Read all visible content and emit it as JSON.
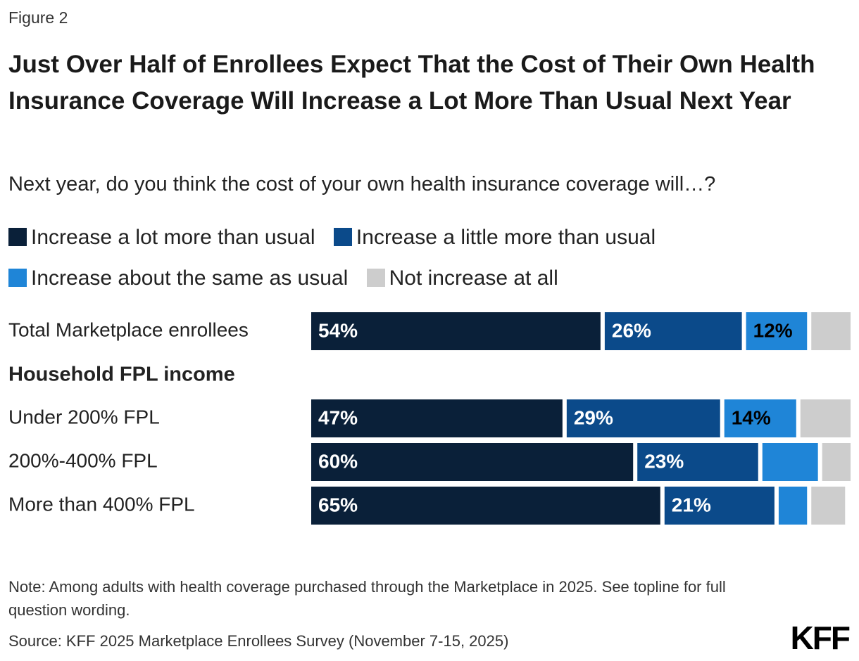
{
  "figure_label": "Figure 2",
  "chart_data": {
    "type": "stacked-bar",
    "title": "Just Over Half of Enrollees Expect That the Cost of Their Own Health Insurance Coverage Will Increase a Lot More Than Usual Next Year",
    "subtitle": "Next year, do you think the cost of your own health insurance coverage will…?",
    "categories": [
      "Total Marketplace enrollees",
      "Under 200% FPL",
      "200%-400% FPL",
      "More than 400% FPL"
    ],
    "group_heading": "Household FPL income",
    "xlim": [
      0,
      100
    ],
    "series": [
      {
        "name": "Increase a lot more than usual",
        "color": "#0a2039",
        "label_color": "#ffffff",
        "values": [
          54,
          47,
          60,
          65
        ],
        "value_labels": [
          "54%",
          "47%",
          "60%",
          "65%"
        ]
      },
      {
        "name": "Increase a little more than usual",
        "color": "#0b4a8a",
        "label_color": "#ffffff",
        "values": [
          26,
          29,
          23,
          21
        ],
        "value_labels": [
          "26%",
          "29%",
          "23%",
          "21%"
        ]
      },
      {
        "name": "Increase about the same as usual",
        "color": "#1f85d7",
        "label_color": "#000000",
        "values": [
          12,
          14,
          11,
          6
        ],
        "value_labels": [
          "12%",
          "14%",
          null,
          null
        ]
      },
      {
        "name": "Not increase at all",
        "color": "#cdcdcd",
        "label_color": "#000000",
        "values": [
          8,
          10,
          6,
          7
        ],
        "value_labels": [
          null,
          null,
          null,
          null
        ]
      }
    ]
  },
  "note": "Note: Among adults with health coverage purchased through the Marketplace in 2025. See topline for full question wording.",
  "source": "Source: KFF 2025 Marketplace Enrollees Survey (November 7-15, 2025)",
  "logo": "KFF"
}
